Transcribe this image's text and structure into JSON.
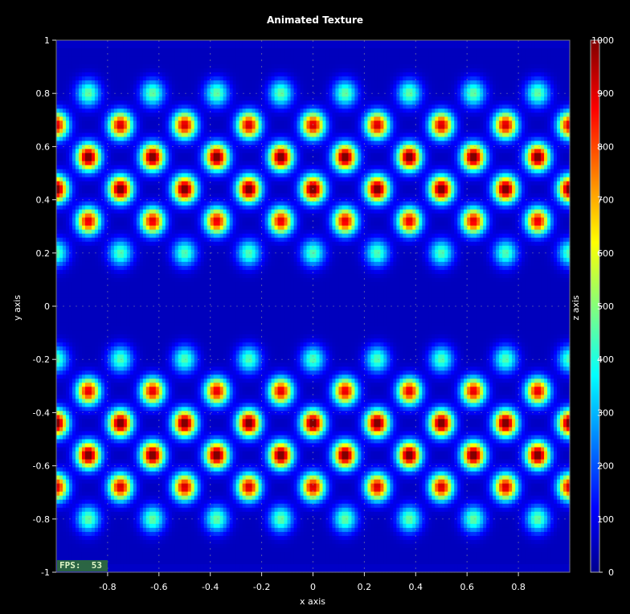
{
  "chart_data": {
    "type": "heatmap",
    "title": "Animated Texture",
    "xlabel": "x axis",
    "ylabel": "y axis",
    "zlabel": "z axis",
    "xlim": [
      -1,
      1
    ],
    "ylim": [
      -1,
      1
    ],
    "zlim": [
      0,
      1000
    ],
    "colormap": "jet",
    "x_ticks": [
      -0.8,
      -0.6,
      -0.4,
      -0.2,
      0,
      0.2,
      0.4,
      0.6,
      0.8
    ],
    "x_tick_labels": [
      "-0.8",
      "-0.6",
      "-0.4",
      "-0.2",
      "0",
      "0.2",
      "0.4",
      "0.6",
      "0.8"
    ],
    "y_ticks": [
      1,
      0.8,
      0.6,
      0.4,
      0.2,
      0,
      -0.2,
      -0.4,
      -0.6,
      -0.8,
      -1
    ],
    "y_tick_labels": [
      "1",
      "0.8",
      "0.6",
      "0.4",
      "0.2",
      "0",
      "-0.2",
      "-0.4",
      "-0.6",
      "-0.8",
      "-1"
    ],
    "z_ticks": [
      1000,
      900,
      800,
      700,
      600,
      500,
      400,
      300,
      200,
      100,
      0
    ],
    "z_tick_labels": [
      "1000",
      "900",
      "800",
      "700",
      "600",
      "500",
      "400",
      "300",
      "200",
      "100",
      "0"
    ],
    "pattern": {
      "x_period": 0.25,
      "rows": [
        {
          "y": 0.8,
          "peak": 420,
          "phase": 0.125
        },
        {
          "y": 0.68,
          "peak": 880,
          "phase": 0.0
        },
        {
          "y": 0.56,
          "peak": 1000,
          "phase": 0.125
        },
        {
          "y": 0.44,
          "peak": 1000,
          "phase": 0.0
        },
        {
          "y": 0.32,
          "peak": 860,
          "phase": 0.125
        },
        {
          "y": 0.2,
          "peak": 400,
          "phase": 0.0
        },
        {
          "y": -0.2,
          "peak": 400,
          "phase": 0.0
        },
        {
          "y": -0.32,
          "peak": 860,
          "phase": 0.125
        },
        {
          "y": -0.44,
          "peak": 1000,
          "phase": 0.0
        },
        {
          "y": -0.56,
          "peak": 1000,
          "phase": 0.125
        },
        {
          "y": -0.68,
          "peak": 880,
          "phase": 0.0
        },
        {
          "y": -0.8,
          "peak": 420,
          "phase": 0.125
        }
      ]
    }
  },
  "overlay": {
    "fps_label": "FPS:  53"
  }
}
